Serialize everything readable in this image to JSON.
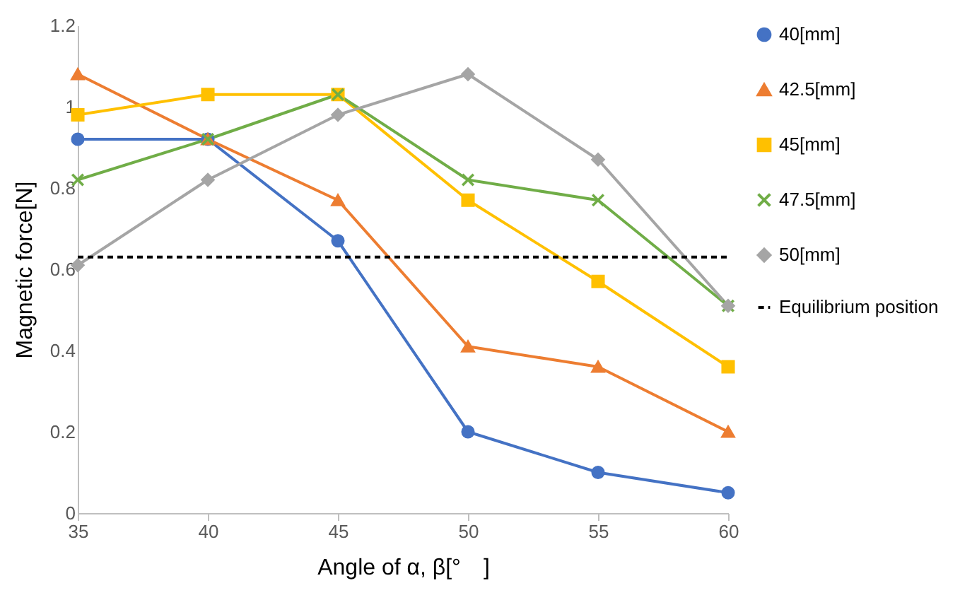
{
  "chart_data": {
    "type": "line",
    "xlabel": "Angle of α, β[°　]",
    "ylabel": "Magnetic force[N]",
    "x": [
      35,
      40,
      45,
      50,
      55,
      60
    ],
    "series": [
      {
        "name": "40[mm]",
        "color": "#4472c4",
        "marker": "circle",
        "values": [
          0.92,
          0.92,
          0.67,
          0.2,
          0.1,
          0.05
        ]
      },
      {
        "name": "42.5[mm]",
        "color": "#ed7d31",
        "marker": "triangle",
        "values": [
          1.08,
          0.92,
          0.77,
          0.41,
          0.36,
          0.2
        ]
      },
      {
        "name": "45[mm]",
        "color": "#ffc000",
        "marker": "square",
        "values": [
          0.98,
          1.03,
          1.03,
          0.77,
          0.57,
          0.36
        ]
      },
      {
        "name": "47.5[mm]",
        "color": "#70ad47",
        "marker": "cross",
        "values": [
          0.82,
          0.92,
          1.03,
          0.82,
          0.77,
          0.51
        ]
      },
      {
        "name": "50[mm]",
        "color": "#a5a5a5",
        "marker": "diamond",
        "values": [
          0.61,
          0.82,
          0.98,
          1.08,
          0.87,
          0.51
        ]
      }
    ],
    "ref_lines": [
      {
        "axis": "y",
        "value": 0.63,
        "label": "Equilibrium position",
        "color": "#000000",
        "line_style": "dashed"
      }
    ],
    "xlim": [
      35,
      60
    ],
    "xticks": [
      35,
      40,
      45,
      50,
      55,
      60
    ],
    "ylim": [
      0,
      1.2
    ],
    "yticks": [
      0,
      0.2,
      0.4,
      0.6,
      0.8,
      1,
      1.2
    ],
    "grid": false,
    "legend": "right"
  }
}
